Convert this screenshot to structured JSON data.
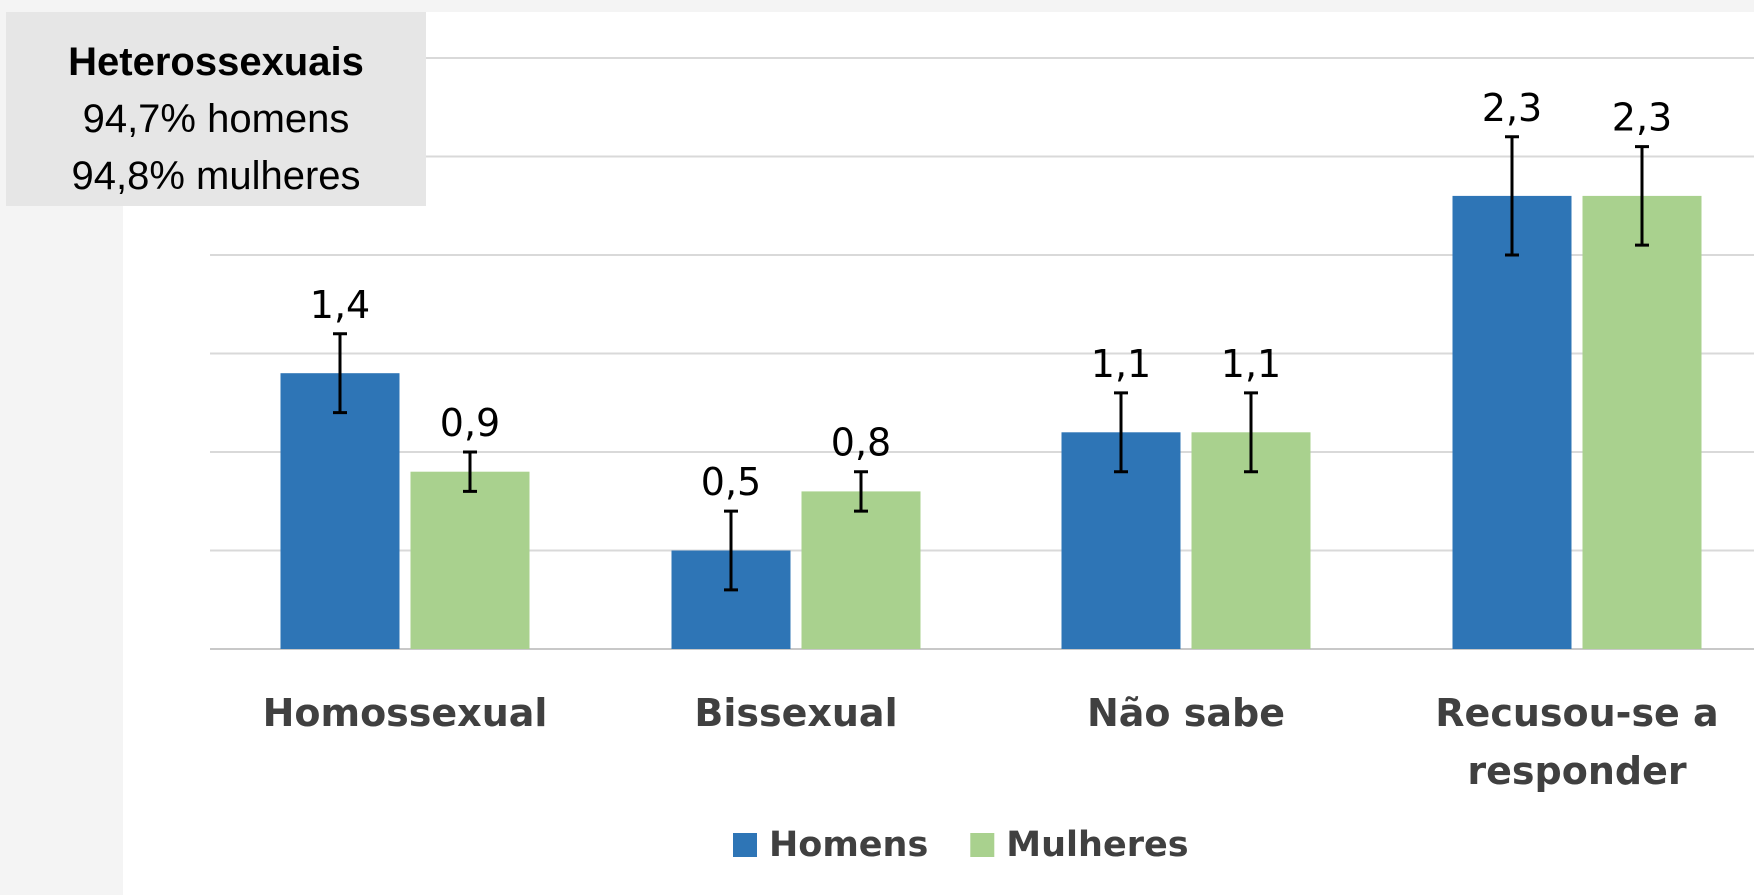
{
  "chart_data": {
    "type": "bar",
    "categories": [
      "Homossexual",
      "Bissexual",
      "Não sabe",
      "Recusou-se a responder"
    ],
    "series": [
      {
        "name": "Homens",
        "color": "#2e75b6",
        "values": [
          1.4,
          0.5,
          1.1,
          2.3
        ],
        "value_labels": [
          "1,4",
          "0,5",
          "1,1",
          "2,3"
        ],
        "errors": [
          0.2,
          0.2,
          0.2,
          0.3
        ]
      },
      {
        "name": "Mulheres",
        "color": "#a9d18e",
        "values": [
          0.9,
          0.8,
          1.1,
          2.3
        ],
        "value_labels": [
          "0,9",
          "0,8",
          "1,1",
          "2,3"
        ],
        "errors": [
          0.1,
          0.1,
          0.2,
          0.25
        ]
      }
    ],
    "ylim": [
      0,
      3
    ],
    "yticks": [
      0,
      0.5,
      1,
      1.5,
      2,
      2.5,
      3
    ],
    "grid": true,
    "legend": "bottom",
    "annotation": {
      "title": "Heterossexuais",
      "lines": [
        "94,7% homens",
        "94,8% mulheres"
      ]
    }
  }
}
